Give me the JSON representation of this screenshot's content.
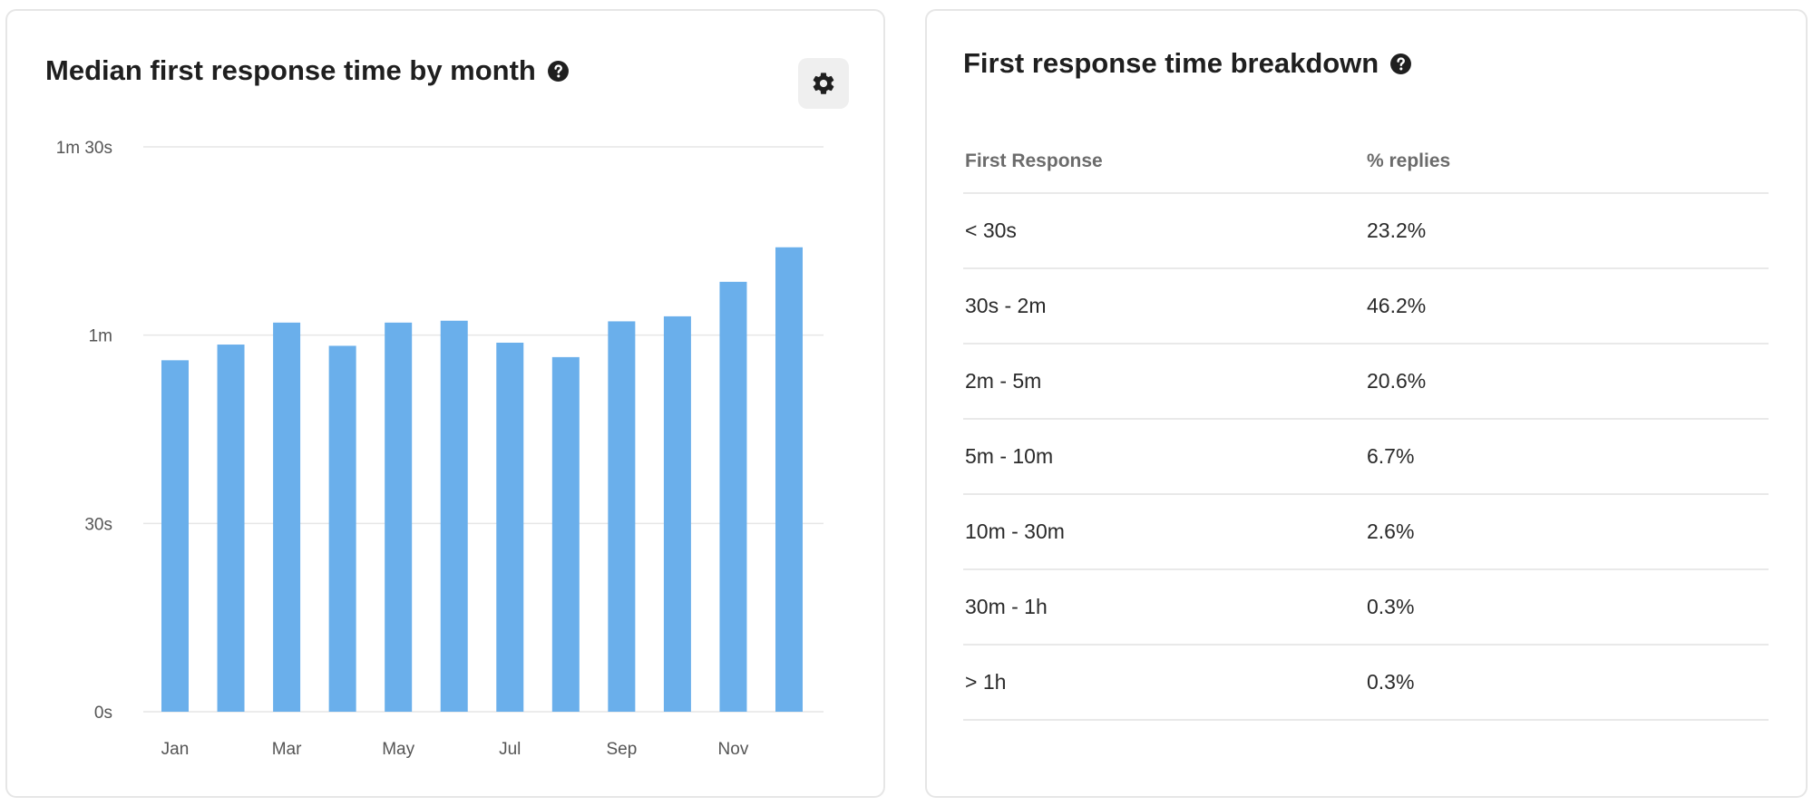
{
  "colors": {
    "bar": "#6aafeb",
    "grid": "#e6e6e6",
    "axis_text": "#555555",
    "title": "#1f1f1f",
    "card_border": "#e6e6e6",
    "settings_bg": "#efefef"
  },
  "left_card": {
    "title": "Median first response time by month",
    "help_icon": "question-circle-icon",
    "settings_icon": "gear-icon"
  },
  "chart_data": {
    "type": "bar",
    "title": "Median first response time by month",
    "xlabel": "",
    "ylabel": "",
    "y_unit": "seconds",
    "ylim": [
      0,
      90
    ],
    "y_ticks": [
      {
        "value": 0,
        "label": "0s"
      },
      {
        "value": 30,
        "label": "30s"
      },
      {
        "value": 60,
        "label": "1m"
      },
      {
        "value": 90,
        "label": "1m 30s"
      }
    ],
    "x_tick_labels": [
      "Jan",
      "",
      "Mar",
      "",
      "May",
      "",
      "Jul",
      "",
      "Sep",
      "",
      "Nov",
      ""
    ],
    "categories": [
      "Jan",
      "Feb",
      "Mar",
      "Apr",
      "May",
      "Jun",
      "Jul",
      "Aug",
      "Sep",
      "Oct",
      "Nov",
      "Dec"
    ],
    "values": [
      56,
      58.5,
      62,
      58.3,
      62,
      62.3,
      58.8,
      56.5,
      62.2,
      63,
      68.5,
      74
    ],
    "grid": true,
    "legend": "none"
  },
  "right_card": {
    "title": "First response time breakdown",
    "help_icon": "question-circle-icon",
    "table": {
      "headers": [
        "First Response",
        "% replies"
      ],
      "rows": [
        {
          "range": "< 30s",
          "pct": "23.2%"
        },
        {
          "range": "30s - 2m",
          "pct": "46.2%"
        },
        {
          "range": "2m - 5m",
          "pct": "20.6%"
        },
        {
          "range": "5m - 10m",
          "pct": "6.7%"
        },
        {
          "range": "10m - 30m",
          "pct": "2.6%"
        },
        {
          "range": "30m - 1h",
          "pct": "0.3%"
        },
        {
          "range": "> 1h",
          "pct": "0.3%"
        }
      ]
    }
  }
}
